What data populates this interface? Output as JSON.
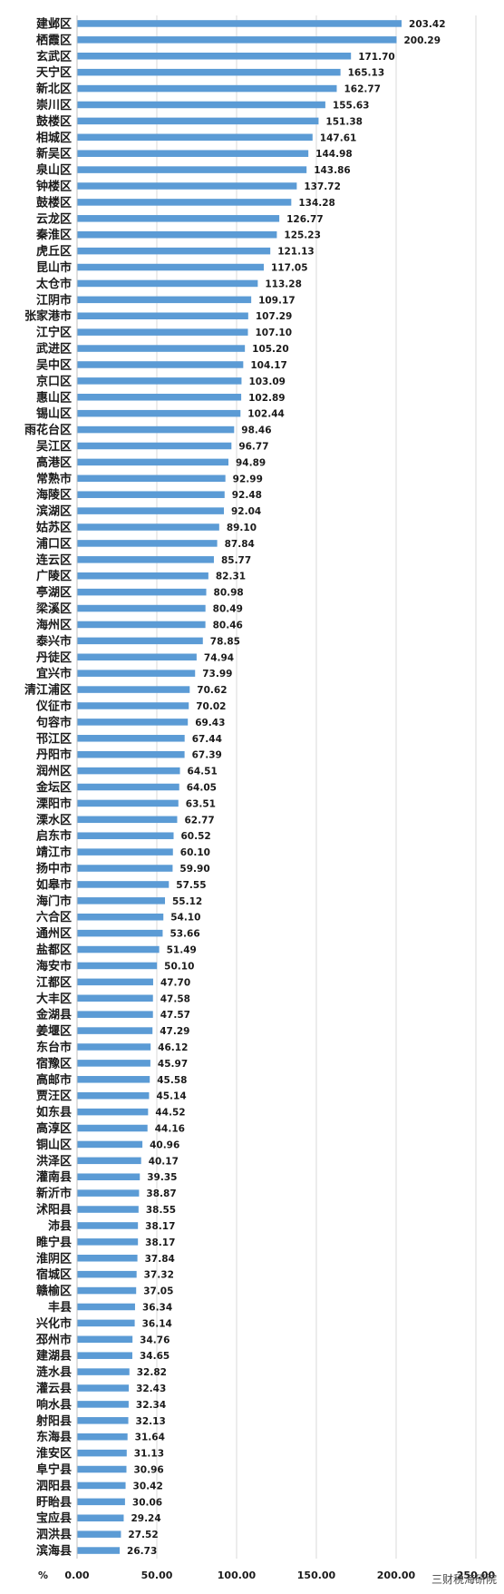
{
  "chart_data": {
    "type": "bar",
    "orientation": "horizontal",
    "categories": [
      "建邺区",
      "栖霞区",
      "玄武区",
      "天宁区",
      "新北区",
      "崇川区",
      "鼓楼区",
      "相城区",
      "新吴区",
      "泉山区",
      "钟楼区",
      "鼓楼区",
      "云龙区",
      "秦淮区",
      "虎丘区",
      "昆山市",
      "太仓市",
      "江阴市",
      "张家港市",
      "江宁区",
      "武进区",
      "吴中区",
      "京口区",
      "惠山区",
      "锡山区",
      "雨花台区",
      "吴江区",
      "高港区",
      "常熟市",
      "海陵区",
      "滨湖区",
      "姑苏区",
      "浦口区",
      "连云区",
      "广陵区",
      "亭湖区",
      "梁溪区",
      "海州区",
      "泰兴市",
      "丹徒区",
      "宜兴市",
      "清江浦区",
      "仪征市",
      "句容市",
      "邗江区",
      "丹阳市",
      "润州区",
      "金坛区",
      "溧阳市",
      "溧水区",
      "启东市",
      "靖江市",
      "扬中市",
      "如皋市",
      "海门市",
      "六合区",
      "通州区",
      "盐都区",
      "海安市",
      "江都区",
      "大丰区",
      "金湖县",
      "姜堰区",
      "东台市",
      "宿豫区",
      "高邮市",
      "贾汪区",
      "如东县",
      "高淳区",
      "铜山区",
      "洪泽区",
      "灌南县",
      "新沂市",
      "沭阳县",
      "沛县",
      "睢宁县",
      "淮阴区",
      "宿城区",
      "赣榆区",
      "丰县",
      "兴化市",
      "邳州市",
      "建湖县",
      "涟水县",
      "灌云县",
      "响水县",
      "射阳县",
      "东海县",
      "淮安区",
      "阜宁县",
      "泗阳县",
      "盱眙县",
      "宝应县",
      "泗洪县",
      "滨海县"
    ],
    "values": [
      203.42,
      200.29,
      171.7,
      165.13,
      162.77,
      155.63,
      151.38,
      147.61,
      144.98,
      143.86,
      137.72,
      134.28,
      126.77,
      125.23,
      121.13,
      117.05,
      113.28,
      109.17,
      107.29,
      107.1,
      105.2,
      104.17,
      103.09,
      102.89,
      102.44,
      98.46,
      96.77,
      94.89,
      92.99,
      92.48,
      92.04,
      89.1,
      87.84,
      85.77,
      82.31,
      80.98,
      80.49,
      80.46,
      78.85,
      74.94,
      73.99,
      70.62,
      70.02,
      69.43,
      67.44,
      67.39,
      64.51,
      64.05,
      63.51,
      62.77,
      60.52,
      60.1,
      59.9,
      57.55,
      55.12,
      54.1,
      53.66,
      51.49,
      50.1,
      47.7,
      47.58,
      47.57,
      47.29,
      46.12,
      45.97,
      45.58,
      45.14,
      44.52,
      44.16,
      40.96,
      40.17,
      39.35,
      38.87,
      38.55,
      38.17,
      38.17,
      37.84,
      37.32,
      37.05,
      36.34,
      36.14,
      34.76,
      34.65,
      32.82,
      32.43,
      32.34,
      32.13,
      31.64,
      31.13,
      30.96,
      30.42,
      30.06,
      29.24,
      27.52,
      26.73
    ],
    "value_labels": [
      "203.42",
      "200.29",
      "171.70",
      "165.13",
      "162.77",
      "155.63",
      "151.38",
      "147.61",
      "144.98",
      "143.86",
      "137.72",
      "134.28",
      "126.77",
      "125.23",
      "121.13",
      "117.05",
      "113.28",
      "109.17",
      "107.29",
      "107.10",
      "105.20",
      "104.17",
      "103.09",
      "102.89",
      "102.44",
      "98.46",
      "96.77",
      "94.89",
      "92.99",
      "92.48",
      "92.04",
      "89.10",
      "87.84",
      "85.77",
      "82.31",
      "80.98",
      "80.49",
      "80.46",
      "78.85",
      "74.94",
      "73.99",
      "70.62",
      "70.02",
      "69.43",
      "67.44",
      "67.39",
      "64.51",
      "64.05",
      "63.51",
      "62.77",
      "60.52",
      "60.10",
      "59.90",
      "57.55",
      "55.12",
      "54.10",
      "53.66",
      "51.49",
      "50.10",
      "47.70",
      "47.58",
      "47.57",
      "47.29",
      "46.12",
      "45.97",
      "45.58",
      "45.14",
      "44.52",
      "44.16",
      "40.96",
      "40.17",
      "39.35",
      "38.87",
      "38.55",
      "38.17",
      "38.17",
      "37.84",
      "37.32",
      "37.05",
      "36.34",
      "36.14",
      "34.76",
      "34.65",
      "32.82",
      "32.43",
      "32.34",
      "32.13",
      "31.64",
      "31.13",
      "30.96",
      "30.42",
      "30.06",
      "29.24",
      "27.52",
      "26.73"
    ],
    "x_unit": "%",
    "x_ticks": [
      "0.00",
      "50.00",
      "100.00",
      "150.00",
      "200.00",
      "250.00"
    ],
    "xlim": [
      0,
      250
    ],
    "grid": "vertical",
    "bar_color": "#5b9bd5"
  },
  "watermark": "三财税海研院"
}
